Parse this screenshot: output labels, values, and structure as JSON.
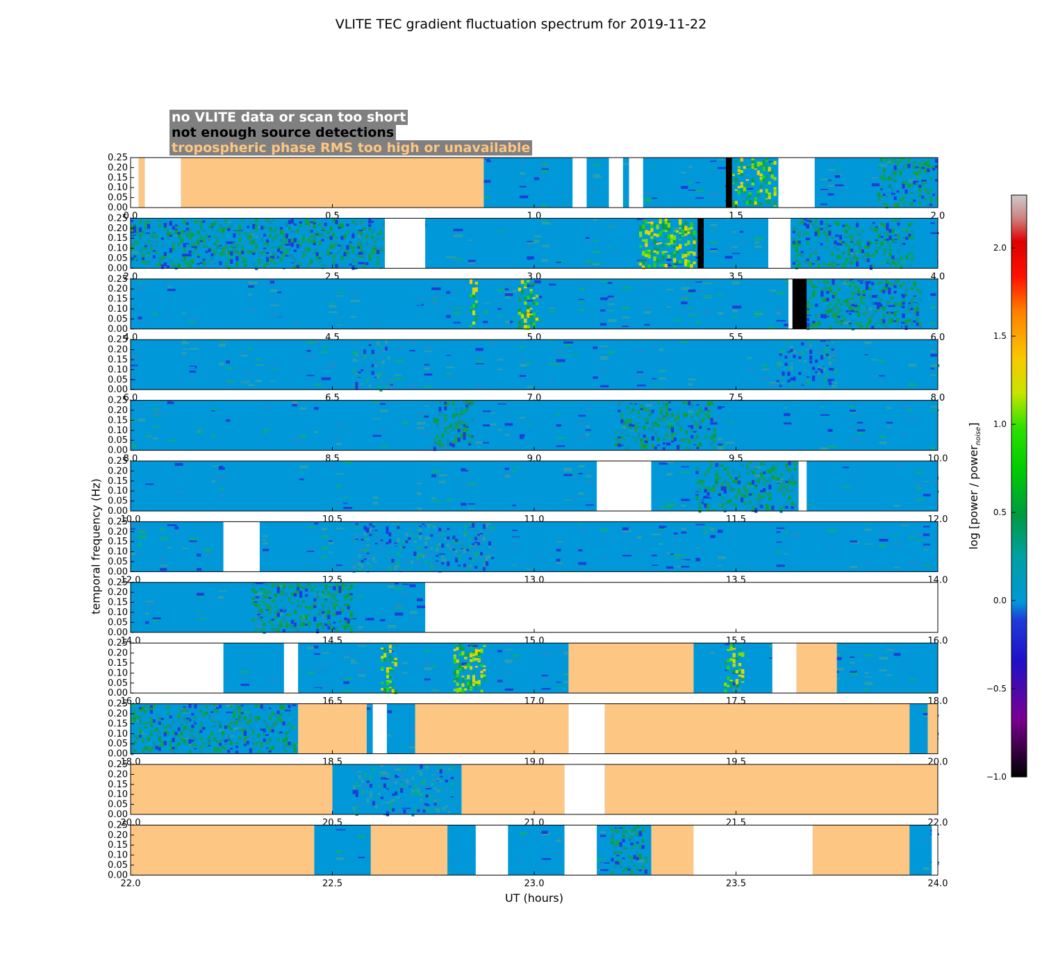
{
  "chart_data": {
    "type": "heatmap",
    "title": "VLITE TEC gradient fluctuation spectrum for 2019-11-22",
    "xlabel": "UT (hours)",
    "ylabel": "temporal frequency (Hz)",
    "ylim": [
      0.0,
      0.25
    ],
    "y_ticks": [
      "0.00",
      "0.05",
      "0.10",
      "0.15",
      "0.20",
      "0.25"
    ],
    "legend": [
      {
        "label": "no VLITE data or scan too short",
        "color": "#ffffff"
      },
      {
        "label": "not enough source detections",
        "color": "#000000"
      },
      {
        "label": "tropospheric phase RMS too high or unavailable",
        "color": "#fdc683"
      }
    ],
    "colorbar": {
      "label": "log [power / power",
      "label_sub": "noise",
      "label_end": "]",
      "range": [
        -1.0,
        2.3
      ],
      "ticks": [
        "−1.0",
        "−0.5",
        "0.0",
        "0.5",
        "1.0",
        "1.5",
        "2.0"
      ],
      "tick_values": [
        -1.0,
        -0.5,
        0.0,
        0.5,
        1.0,
        1.5,
        2.0
      ]
    },
    "panels": [
      {
        "x_start": 0.0,
        "x_end": 2.0,
        "x_ticks": [
          "0.0",
          "0.5",
          "1.0",
          "1.5",
          "2.0"
        ],
        "flags": [
          {
            "start": 0.0,
            "end": 0.02,
            "status": "no-data"
          },
          {
            "start": 0.02,
            "end": 0.035,
            "status": "tropo"
          },
          {
            "start": 0.035,
            "end": 0.125,
            "status": "no-data"
          },
          {
            "start": 0.125,
            "end": 0.875,
            "status": "tropo"
          },
          {
            "start": 1.095,
            "end": 1.13,
            "status": "no-data"
          },
          {
            "start": 1.185,
            "end": 1.22,
            "status": "no-data"
          },
          {
            "start": 1.235,
            "end": 1.27,
            "status": "no-data"
          },
          {
            "start": 1.475,
            "end": 1.49,
            "status": "low-detections"
          },
          {
            "start": 1.605,
            "end": 1.695,
            "status": "no-data"
          }
        ],
        "activity": [
          {
            "start": 1.49,
            "end": 1.6,
            "level": "high"
          },
          {
            "start": 1.85,
            "end": 2.0,
            "level": "medium"
          }
        ]
      },
      {
        "x_start": 2.0,
        "x_end": 4.0,
        "x_ticks": [
          "2.0",
          "2.5",
          "3.0",
          "3.5",
          "4.0"
        ],
        "flags": [
          {
            "start": 2.63,
            "end": 2.73,
            "status": "no-data"
          },
          {
            "start": 3.405,
            "end": 3.42,
            "status": "low-detections"
          },
          {
            "start": 3.58,
            "end": 3.635,
            "status": "no-data"
          }
        ],
        "activity": [
          {
            "start": 2.0,
            "end": 2.63,
            "level": "medium"
          },
          {
            "start": 3.26,
            "end": 3.4,
            "level": "high"
          },
          {
            "start": 3.64,
            "end": 3.94,
            "level": "medium"
          }
        ]
      },
      {
        "x_start": 4.0,
        "x_end": 6.0,
        "x_ticks": [
          "4.0",
          "4.5",
          "5.0",
          "5.5",
          "6.0"
        ],
        "flags": [
          {
            "start": 5.63,
            "end": 5.64,
            "status": "no-data"
          },
          {
            "start": 5.64,
            "end": 5.675,
            "status": "low-detections"
          }
        ],
        "activity": [
          {
            "start": 4.84,
            "end": 4.86,
            "level": "high"
          },
          {
            "start": 4.96,
            "end": 5.01,
            "level": "high"
          },
          {
            "start": 5.675,
            "end": 5.96,
            "level": "medium"
          }
        ]
      },
      {
        "x_start": 6.0,
        "x_end": 8.0,
        "x_ticks": [
          "6.0",
          "6.5",
          "7.0",
          "7.5",
          "8.0"
        ],
        "flags": [],
        "activity": [
          {
            "start": 6.55,
            "end": 6.65,
            "level": "low"
          },
          {
            "start": 7.6,
            "end": 7.75,
            "level": "low"
          }
        ]
      },
      {
        "x_start": 8.0,
        "x_end": 10.0,
        "x_ticks": [
          "8.0",
          "8.5",
          "9.0",
          "9.5",
          "10.0"
        ],
        "flags": [],
        "activity": [
          {
            "start": 8.75,
            "end": 8.85,
            "level": "medium"
          },
          {
            "start": 9.2,
            "end": 9.45,
            "level": "medium"
          }
        ]
      },
      {
        "x_start": 10.0,
        "x_end": 12.0,
        "x_ticks": [
          "10.0",
          "10.5",
          "11.0",
          "11.5",
          "12.0"
        ],
        "flags": [
          {
            "start": 11.155,
            "end": 11.29,
            "status": "no-data"
          },
          {
            "start": 11.655,
            "end": 11.675,
            "status": "no-data"
          }
        ],
        "activity": [
          {
            "start": 11.4,
            "end": 11.65,
            "level": "medium"
          }
        ]
      },
      {
        "x_start": 12.0,
        "x_end": 14.0,
        "x_ticks": [
          "12.0",
          "12.5",
          "13.0",
          "13.5",
          "14.0"
        ],
        "flags": [
          {
            "start": 12.23,
            "end": 12.32,
            "status": "no-data"
          }
        ],
        "activity": [
          {
            "start": 12.55,
            "end": 12.9,
            "level": "low"
          }
        ]
      },
      {
        "x_start": 14.0,
        "x_end": 16.0,
        "x_ticks": [
          "14.0",
          "14.5",
          "15.0",
          "15.5",
          "16.0"
        ],
        "flags": [
          {
            "start": 14.73,
            "end": 16.0,
            "status": "no-data"
          }
        ],
        "activity": [
          {
            "start": 14.3,
            "end": 14.55,
            "level": "medium"
          }
        ]
      },
      {
        "x_start": 16.0,
        "x_end": 18.0,
        "x_ticks": [
          "16.0",
          "16.5",
          "17.0",
          "17.5",
          "18.0"
        ],
        "flags": [
          {
            "start": 16.0,
            "end": 16.23,
            "status": "no-data"
          },
          {
            "start": 16.38,
            "end": 16.415,
            "status": "no-data"
          },
          {
            "start": 17.085,
            "end": 17.395,
            "status": "tropo"
          },
          {
            "start": 17.59,
            "end": 17.65,
            "status": "no-data"
          },
          {
            "start": 17.65,
            "end": 17.75,
            "status": "tropo"
          }
        ],
        "activity": [
          {
            "start": 16.62,
            "end": 16.66,
            "level": "high"
          },
          {
            "start": 16.8,
            "end": 16.88,
            "level": "high"
          },
          {
            "start": 17.47,
            "end": 17.52,
            "level": "high"
          }
        ]
      },
      {
        "x_start": 18.0,
        "x_end": 20.0,
        "x_ticks": [
          "18.0",
          "18.5",
          "19.0",
          "19.5",
          "20.0"
        ],
        "flags": [
          {
            "start": 18.415,
            "end": 18.585,
            "status": "tropo"
          },
          {
            "start": 18.6,
            "end": 18.635,
            "status": "no-data"
          },
          {
            "start": 18.705,
            "end": 19.085,
            "status": "tropo"
          },
          {
            "start": 19.085,
            "end": 19.175,
            "status": "no-data"
          },
          {
            "start": 19.175,
            "end": 19.93,
            "status": "tropo"
          },
          {
            "start": 19.975,
            "end": 20.0,
            "status": "tropo"
          }
        ],
        "activity": [
          {
            "start": 18.0,
            "end": 18.41,
            "level": "medium"
          }
        ]
      },
      {
        "x_start": 20.0,
        "x_end": 22.0,
        "x_ticks": [
          "20.0",
          "20.5",
          "21.0",
          "21.5",
          "22.0"
        ],
        "flags": [
          {
            "start": 20.0,
            "end": 20.5,
            "status": "tropo"
          },
          {
            "start": 20.82,
            "end": 21.075,
            "status": "tropo"
          },
          {
            "start": 21.075,
            "end": 21.175,
            "status": "no-data"
          },
          {
            "start": 21.175,
            "end": 22.0,
            "status": "tropo"
          }
        ],
        "activity": [
          {
            "start": 20.55,
            "end": 20.8,
            "level": "low"
          }
        ]
      },
      {
        "x_start": 22.0,
        "x_end": 24.0,
        "x_ticks": [
          "22.0",
          "22.5",
          "23.0",
          "23.5",
          "24.0"
        ],
        "flags": [
          {
            "start": 22.0,
            "end": 22.455,
            "status": "tropo"
          },
          {
            "start": 22.595,
            "end": 22.785,
            "status": "tropo"
          },
          {
            "start": 22.855,
            "end": 22.935,
            "status": "no-data"
          },
          {
            "start": 23.075,
            "end": 23.155,
            "status": "no-data"
          },
          {
            "start": 23.29,
            "end": 23.395,
            "status": "tropo"
          },
          {
            "start": 23.395,
            "end": 23.69,
            "status": "no-data"
          },
          {
            "start": 23.69,
            "end": 23.93,
            "status": "tropo"
          },
          {
            "start": 23.985,
            "end": 24.0,
            "status": "no-data"
          }
        ],
        "activity": [
          {
            "start": 23.19,
            "end": 23.28,
            "level": "medium"
          }
        ]
      }
    ]
  }
}
